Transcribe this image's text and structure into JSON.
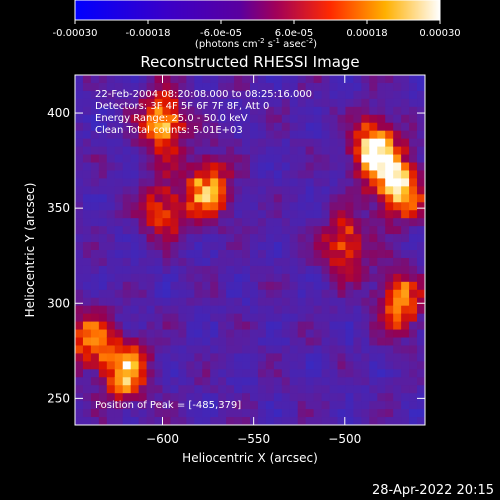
{
  "colorbar": {
    "ticks": [
      "-0.00030",
      "-0.00018",
      "-6.0e-05",
      "6.0e-05",
      "0.00018",
      "0.00030"
    ],
    "unit_prefix": "(photons cm",
    "unit_exp1": "-2",
    "unit_mid": " s",
    "unit_exp2": "-1",
    "unit_mid2": " asec",
    "unit_exp3": "-2",
    "unit_suffix": ")",
    "range": [
      -0.0003,
      0.0003
    ]
  },
  "plot": {
    "title": "Reconstructed RHESSI Image",
    "xlabel": "Heliocentric X (arcsec)",
    "ylabel": "Heliocentric Y (arcsec)",
    "info": [
      "22-Feb-2004 08:20:08.000 to 08:25:16.000",
      "Detectors: 3F 4F 5F 6F 7F 8F, Att 0",
      "Energy Range: 25.0 - 50.0 keV",
      "Clean     Total counts: 5.01E+03"
    ],
    "peak_text": "Position of Peak = [-485,379]"
  },
  "chart_data": {
    "type": "heatmap",
    "title": "Reconstructed RHESSI Image",
    "xlabel": "Heliocentric X (arcsec)",
    "ylabel": "Heliocentric Y (arcsec)",
    "xlim": [
      -648,
      -456
    ],
    "ylim": [
      236,
      420
    ],
    "x_ticks": [
      -600,
      -550,
      -500
    ],
    "x_tick_labels": [
      "−600",
      "−550",
      "−500"
    ],
    "y_ticks": [
      250,
      300,
      350,
      400
    ],
    "y_tick_labels": [
      "250",
      "300",
      "350",
      "400"
    ],
    "colorbar_range": [
      -0.0003,
      0.0003
    ],
    "colormap": "blue-purple-red-yellow-white",
    "peak_position": [
      -485,
      379
    ],
    "bright_regions": [
      {
        "x": -483,
        "y": 380,
        "level": 1.0
      },
      {
        "x": -470,
        "y": 360,
        "level": 0.85
      },
      {
        "x": -500,
        "y": 330,
        "level": 0.6
      },
      {
        "x": -470,
        "y": 300,
        "level": 0.7
      },
      {
        "x": -600,
        "y": 395,
        "level": 0.8
      },
      {
        "x": -575,
        "y": 360,
        "level": 0.75
      },
      {
        "x": -640,
        "y": 280,
        "level": 0.6
      },
      {
        "x": -620,
        "y": 265,
        "level": 0.8
      },
      {
        "x": -600,
        "y": 350,
        "level": 0.55
      }
    ]
  },
  "footer": {
    "timestamp": "28-Apr-2022 20:15"
  }
}
